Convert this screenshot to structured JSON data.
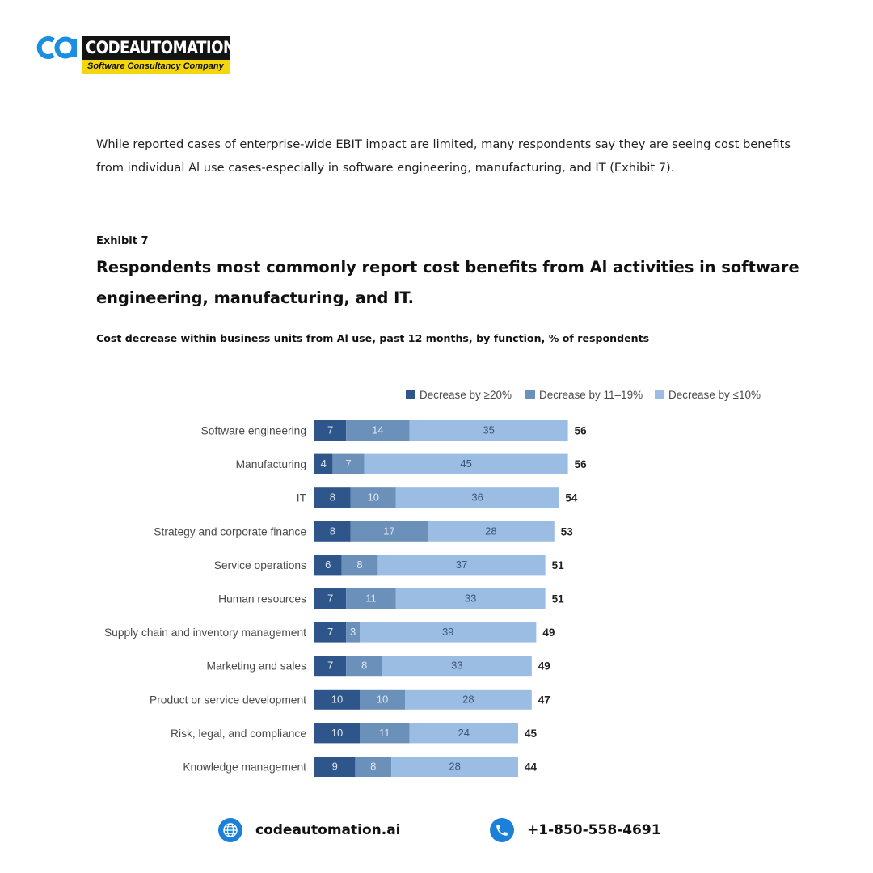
{
  "brand": {
    "name": "CODEAUTOMATION",
    "tagline": "Software Consultancy Company",
    "colors": {
      "blue": "#1a8ee0",
      "black": "#141414",
      "yellow": "#f2d70f"
    }
  },
  "intro_text": "While reported cases of enterprise-wide EBIT impact are limited, many respondents say they are seeing cost benefits from individual Al use cases-especially in software engineering, manufacturing, and IT (Exhibit 7).",
  "exhibit_label": "Exhibit 7",
  "exhibit_title": "Respondents most commonly report cost benefits from Al activities in software engineering, manufacturing, and IT.",
  "chart_subtitle": "Cost decrease within business units from Al use, past 12 months, by function, % of respondents",
  "chart_data": {
    "type": "bar",
    "orientation": "horizontal",
    "stacked": true,
    "legend_position": "top-right",
    "grid": false,
    "categories": [
      "Software engineering",
      "Manufacturing",
      "IT",
      "Strategy and corporate finance",
      "Service operations",
      "Human resources",
      "Supply chain and inventory management",
      "Marketing and sales",
      "Product or service development",
      "Risk, legal, and compliance",
      "Knowledge management"
    ],
    "series": [
      {
        "name": "Decrease by ≥20%",
        "color": "#2f568a",
        "label_color": "#d9e3ef",
        "values": [
          7,
          4,
          8,
          8,
          6,
          7,
          7,
          7,
          10,
          10,
          9
        ]
      },
      {
        "name": "Decrease by 11–19%",
        "color": "#6b90ba",
        "label_color": "#dde7f2",
        "values": [
          14,
          7,
          10,
          17,
          8,
          11,
          3,
          8,
          10,
          11,
          8
        ]
      },
      {
        "name": "Decrease by ≤10%",
        "color": "#9bbde3",
        "label_color": "#3e5575",
        "values": [
          35,
          45,
          36,
          28,
          37,
          33,
          39,
          33,
          28,
          24,
          28
        ]
      }
    ],
    "totals": [
      56,
      56,
      54,
      53,
      51,
      51,
      49,
      49,
      47,
      45,
      44
    ]
  },
  "footer": {
    "website": "codeautomation.ai",
    "phone": "+1-850-558-4691",
    "icons": [
      "globe-icon",
      "phone-icon"
    ]
  }
}
